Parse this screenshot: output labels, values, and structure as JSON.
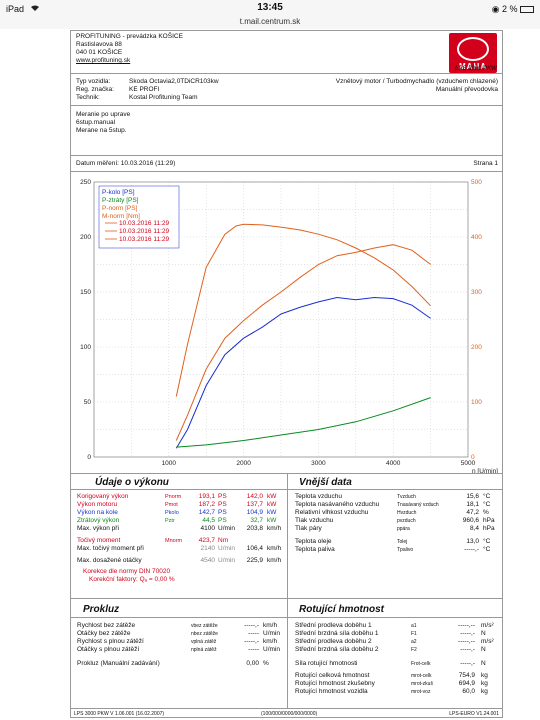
{
  "status": {
    "device": "iPad",
    "wifi": "wifi",
    "time": "13:45",
    "battery": "2 %",
    "url": "t.mail.centrum.sk"
  },
  "header": {
    "company": "PROFITUNING - prevádzka KOŠICE",
    "street": "Rastislavova 88",
    "city": "040 01 KOŠICE",
    "web": "www.profituning.sk",
    "logo_text": "MAHA",
    "model": "LPS 3000 PKW"
  },
  "vehicle": {
    "type_label": "Typ vozidla:",
    "type_value": "Skoda Octavia2,0TDiCR103kw",
    "reg_label": "Reg. značka:",
    "reg_value": "KE PROFI",
    "tech_label": "Technik:",
    "tech_value": "Kostal Profituning Team",
    "engine": "Vznětový motor / Turbodmychadlo (vzduchem chlazené)",
    "gearbox": "Manuální převodovka"
  },
  "notes": [
    "Meranie po uprave",
    "6stup.manual",
    "Merane na 5stup."
  ],
  "meta": {
    "date": "Datum měření: 10.03.2016 (11:29)",
    "page": "Strana 1"
  },
  "chart_data": {
    "type": "line",
    "xlabel": "n [U/min]",
    "xlim": [
      0,
      5000
    ],
    "ylim_left": [
      0,
      250
    ],
    "ylim_right": [
      0,
      500
    ],
    "x_ticks": [
      "1000",
      "2000",
      "3000",
      "4000",
      "5000"
    ],
    "y_ticks_left": [
      "0",
      "50",
      "100",
      "150",
      "200",
      "250"
    ],
    "y_ticks_right": [
      "0",
      "100",
      "200",
      "300",
      "400",
      "500"
    ],
    "legend": [
      "P-kolo [PS]",
      "P-ztráty [PS]",
      "P-norm [PS]",
      "M-norm [Nm]"
    ],
    "legend_runs": [
      "10.03.2016 11:29",
      "10.03.2016 11:29",
      "10.03.2016 11:29"
    ],
    "series": [
      {
        "name": "P-kolo [PS]",
        "color": "#1a2fd1",
        "axis": "left",
        "x": [
          1100,
          1250,
          1500,
          1750,
          2000,
          2250,
          2500,
          2750,
          3000,
          3250,
          3500,
          3750,
          4000,
          4250,
          4500
        ],
        "y": [
          8,
          25,
          65,
          93,
          108,
          118,
          130,
          136,
          141,
          145,
          143,
          145,
          144,
          138,
          126
        ]
      },
      {
        "name": "P-ztráty [PS]",
        "color": "#0a8a1f",
        "axis": "left",
        "x": [
          1100,
          1500,
          2000,
          2500,
          3000,
          3500,
          4000,
          4500
        ],
        "y": [
          9,
          11,
          15,
          20,
          25,
          32,
          42,
          54
        ]
      },
      {
        "name": "P-norm [PS]",
        "color": "#e0601b",
        "axis": "left",
        "x": [
          1100,
          1250,
          1500,
          1750,
          2000,
          2250,
          2500,
          2750,
          3000,
          3250,
          3500,
          3750,
          4000,
          4250,
          4500
        ],
        "y": [
          15,
          38,
          80,
          108,
          124,
          138,
          150,
          163,
          175,
          183,
          186,
          190,
          193,
          188,
          175
        ]
      },
      {
        "name": "M-norm [Nm]",
        "color": "#e0601b",
        "axis": "right",
        "x": [
          1100,
          1250,
          1500,
          1750,
          1900,
          2000,
          2250,
          2500,
          2750,
          3000,
          3250,
          3500,
          3750,
          4000,
          4250,
          4500
        ],
        "y": [
          110,
          205,
          345,
          405,
          420,
          423,
          422,
          418,
          413,
          405,
          395,
          380,
          362,
          340,
          310,
          275
        ]
      }
    ]
  },
  "vykon": {
    "title": "Údaje o výkonu",
    "rows": [
      {
        "label": "Korigovaný výkon",
        "sym": "Pnorm",
        "v1": "193,1",
        "u1": "PS",
        "v2": "142,0",
        "u2": "kW",
        "cls": "red"
      },
      {
        "label": "Výkon motoru",
        "sym": "Pmot",
        "v1": "187,2",
        "u1": "PS",
        "v2": "137,7",
        "u2": "kW",
        "cls": "red"
      },
      {
        "label": "Výkon na kole",
        "sym": "Pkolo",
        "v1": "142,7",
        "u1": "PS",
        "v2": "104,9",
        "u2": "kW",
        "cls": "blue"
      },
      {
        "label": "Ztrátový výkon",
        "sym": "Pztr",
        "v1": "44,5",
        "u1": "PS",
        "v2": "32,7",
        "u2": "kW",
        "cls": "green"
      },
      {
        "label": "Max. výkon při",
        "sym": "",
        "v1": "4100",
        "u1": "U/min",
        "v2": "203,8",
        "u2": "km/h",
        "cls": ""
      }
    ],
    "torque": {
      "label": "Točivý moment",
      "sym": "Mnorm",
      "v1": "423,7",
      "u1": "Nm"
    },
    "torque_at": {
      "label": "Max. točivý moment při",
      "v1": "2140",
      "u1": "U/min",
      "v2": "106,4",
      "u2": "km/h"
    },
    "max_rpm": {
      "label": "Max. dosažené otáčky",
      "v1": "4540",
      "u1": "U/min",
      "v2": "225,9",
      "u2": "km/h"
    },
    "korekce": "Korekce dle normy DIN 70020",
    "faktor": "Korekční faktory: Qₐ =  0,00 %"
  },
  "vnejsi": {
    "title": "Vnější data",
    "rows": [
      {
        "label": "Teplota vzduchu",
        "sym": "Tvzduch",
        "val": "15,6",
        "unit": "°C"
      },
      {
        "label": "Teplota nasávaného vzduchu",
        "sym": "Tnasávaný vzduch",
        "val": "18,1",
        "unit": "°C"
      },
      {
        "label": "Relativní vlhkost vzduchu",
        "sym": "Hvzduch",
        "val": "47,2",
        "unit": "%"
      },
      {
        "label": "Tlak vzduchu",
        "sym": "pvzduch",
        "val": "960,6",
        "unit": "hPa"
      },
      {
        "label": "Tlak páry",
        "sym": "ppára",
        "val": "8,4",
        "unit": "hPa"
      },
      {
        "label": "Teplota oleje",
        "sym": "Tolej",
        "val": "13,0",
        "unit": "°C"
      },
      {
        "label": "Teplota paliva",
        "sym": "Tpalivo",
        "val": "-----,-",
        "unit": "°C"
      }
    ]
  },
  "prokluz": {
    "title": "Prokluz",
    "rows": [
      {
        "label": "Rychlost bez zátěže",
        "sym": "vbez zátěže",
        "val": "-----,-",
        "unit": "km/h"
      },
      {
        "label": "Otáčky bez zátěže",
        "sym": "nbez zátěže",
        "val": "-----",
        "unit": "U/min"
      },
      {
        "label": "Rychlost s plnou zátěží",
        "sym": "vplná zátěž",
        "val": "-----,-",
        "unit": "km/h"
      },
      {
        "label": "Otáčky s plnou zátěží",
        "sym": "nplná zátěž",
        "val": "-----",
        "unit": "U/min"
      }
    ],
    "manual": {
      "label": "Prokluz (Manuální zadávání)",
      "val": "0,00",
      "unit": "%"
    }
  },
  "rotacni": {
    "title": "Rotující hmotnost",
    "rows": [
      {
        "label": "Střední prodleva doběhu 1",
        "sym": "a1",
        "val": "-----,--",
        "unit": "m/s²"
      },
      {
        "label": "Střední brzdná síla doběhu 1",
        "sym": "F1",
        "val": "-----,-",
        "unit": "N"
      },
      {
        "label": "Střední prodleva doběhu 2",
        "sym": "a2",
        "val": "-----,--",
        "unit": "m/s²"
      },
      {
        "label": "Střední brzdná síla doběhu 2",
        "sym": "F2",
        "val": "-----,-",
        "unit": "N"
      },
      {
        "label": "Síla rotující hmotnosti",
        "sym": "Frot-celk",
        "val": "-----,-",
        "unit": "N"
      },
      {
        "label": "Rotující celková hmotnost",
        "sym": "mrot-celk",
        "val": "754,9",
        "unit": "kg"
      },
      {
        "label": "Rotující hmotnost zkušebny",
        "sym": "mrot-zkuš",
        "val": "694,9",
        "unit": "kg"
      },
      {
        "label": "Rotující hmotnost vozidla",
        "sym": "mrot-voz",
        "val": "60,0",
        "unit": "kg"
      }
    ]
  },
  "footer": {
    "left": "LPS 3000 PKW V 1.06.001 (16.02.2007)",
    "center": "(100/000/0000/000/0000)",
    "right": "LPS-EURO V1.24.001"
  }
}
